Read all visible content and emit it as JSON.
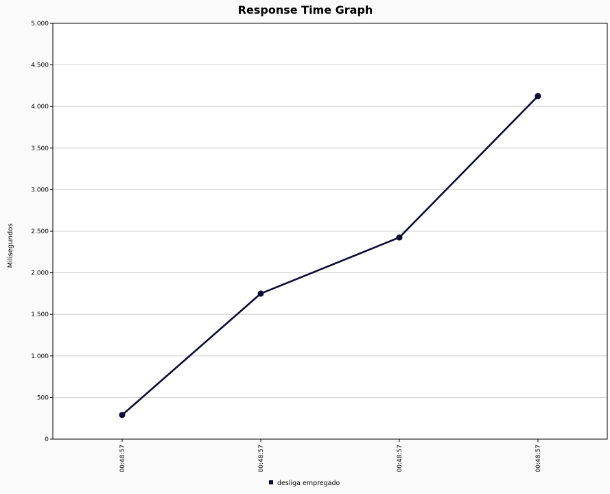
{
  "chart_data": {
    "type": "line",
    "title": "Response Time Graph",
    "ylabel": "Milisegundos",
    "xlabel": "",
    "categories": [
      "00:48:57",
      "00:48:57",
      "00:48:57",
      "00:48:57"
    ],
    "series": [
      {
        "name": "desliga empregado",
        "values": [
          290,
          1750,
          2425,
          4125
        ],
        "color": "#0b0b33"
      }
    ],
    "ylim": [
      0,
      5000
    ],
    "yticks": [
      0,
      500,
      1000,
      1500,
      2000,
      2500,
      3000,
      3500,
      4000,
      4500,
      5000
    ],
    "ytick_labels": [
      "0",
      "500",
      "1.000",
      "1.500",
      "2.000",
      "2.500",
      "3.000",
      "3.500",
      "4.000",
      "4.500",
      "5.000"
    ],
    "grid": true,
    "legend_position": "bottom-center",
    "plot_background": "#ffffff",
    "grid_color": "#c0c0c0"
  }
}
